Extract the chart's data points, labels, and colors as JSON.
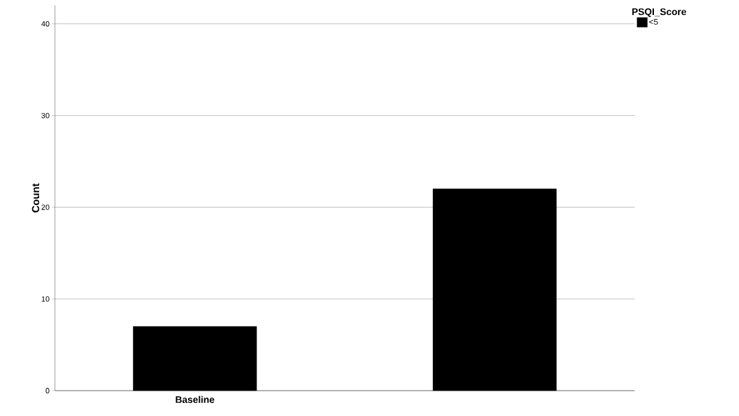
{
  "chart_data": {
    "type": "bar",
    "ylabel": "Count",
    "legend_title": "PSQI_Score",
    "categories": [
      "Baseline",
      null
    ],
    "series": [
      {
        "name": "<5",
        "color": "#000000",
        "values": [
          7,
          22
        ]
      }
    ],
    "ylim": [
      0,
      42
    ],
    "yticks": [
      0,
      10,
      20,
      30,
      40
    ],
    "grid": "y",
    "legend": "top right"
  }
}
